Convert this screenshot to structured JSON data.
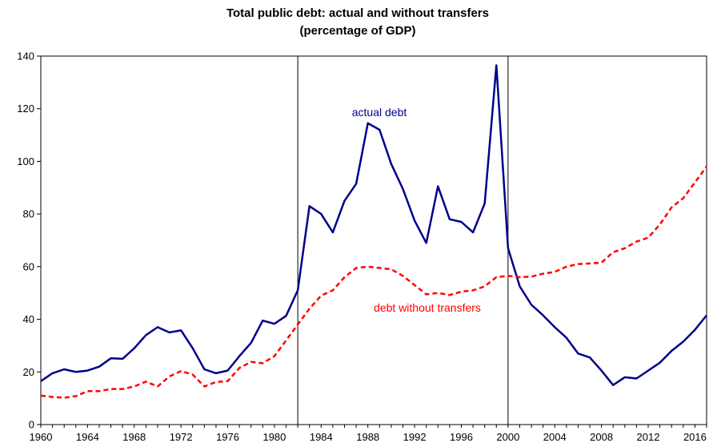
{
  "chart_data": {
    "type": "line",
    "title": "Total public debt: actual and without transfers",
    "subtitle": "(percentage of GDP)",
    "xlabel": "",
    "ylabel": "",
    "xlim": [
      1960,
      2017
    ],
    "ylim": [
      0,
      140
    ],
    "x_ticks": [
      1960,
      1964,
      1968,
      1972,
      1976,
      1980,
      1984,
      1988,
      1992,
      1996,
      2000,
      2004,
      2008,
      2012,
      2016
    ],
    "y_ticks": [
      0,
      20,
      40,
      60,
      80,
      100,
      120,
      140
    ],
    "grid": false,
    "vertical_lines": [
      1982,
      2000
    ],
    "x": [
      1960,
      1961,
      1962,
      1963,
      1964,
      1965,
      1966,
      1967,
      1968,
      1969,
      1970,
      1971,
      1972,
      1973,
      1974,
      1975,
      1976,
      1977,
      1978,
      1979,
      1980,
      1981,
      1982,
      1983,
      1984,
      1985,
      1986,
      1987,
      1988,
      1989,
      1990,
      1991,
      1992,
      1993,
      1994,
      1995,
      1996,
      1997,
      1998,
      1999,
      2000,
      2001,
      2002,
      2003,
      2004,
      2005,
      2006,
      2007,
      2008,
      2009,
      2010,
      2011,
      2012,
      2013,
      2014,
      2015,
      2016,
      2017
    ],
    "series": [
      {
        "name": "actual debt",
        "color": "#00008B",
        "style": "solid",
        "values": [
          16.5,
          19.5,
          21,
          20,
          20.5,
          22,
          25.2,
          25,
          29,
          34,
          37,
          35,
          35.8,
          29,
          21,
          19.5,
          20.5,
          26,
          31,
          39.5,
          38.3,
          41.3,
          51,
          83,
          80,
          73,
          85,
          91.5,
          114.5,
          112,
          99,
          89.5,
          77.5,
          69,
          90.5,
          78,
          77,
          73,
          84,
          136.5,
          67,
          52.5,
          45.5,
          41.5,
          37,
          33,
          27,
          25.5,
          20.5,
          15,
          18,
          17.5,
          20.5,
          23.5,
          28,
          31.5,
          36,
          41.5
        ]
      },
      {
        "name": "debt without transfers",
        "color": "#FF0000",
        "style": "dashed",
        "values": [
          11,
          10.5,
          10.2,
          10.8,
          12.7,
          12.7,
          13.5,
          13.5,
          14.5,
          16.3,
          14.5,
          18.3,
          20.3,
          19,
          14.5,
          16.2,
          16.5,
          21.5,
          23.8,
          23.3,
          26,
          32,
          38,
          44,
          49,
          51,
          56,
          59.5,
          60,
          59.5,
          59,
          56.5,
          53,
          49.5,
          50,
          49.2,
          50.5,
          51,
          52.5,
          56,
          56.5,
          56,
          56.2,
          57.3,
          58,
          60,
          61,
          61.2,
          61.5,
          65.5,
          67,
          69.5,
          71,
          76,
          82.5,
          86,
          92,
          98
        ]
      }
    ],
    "annotations": [
      "actual debt",
      "debt without transfers"
    ]
  }
}
